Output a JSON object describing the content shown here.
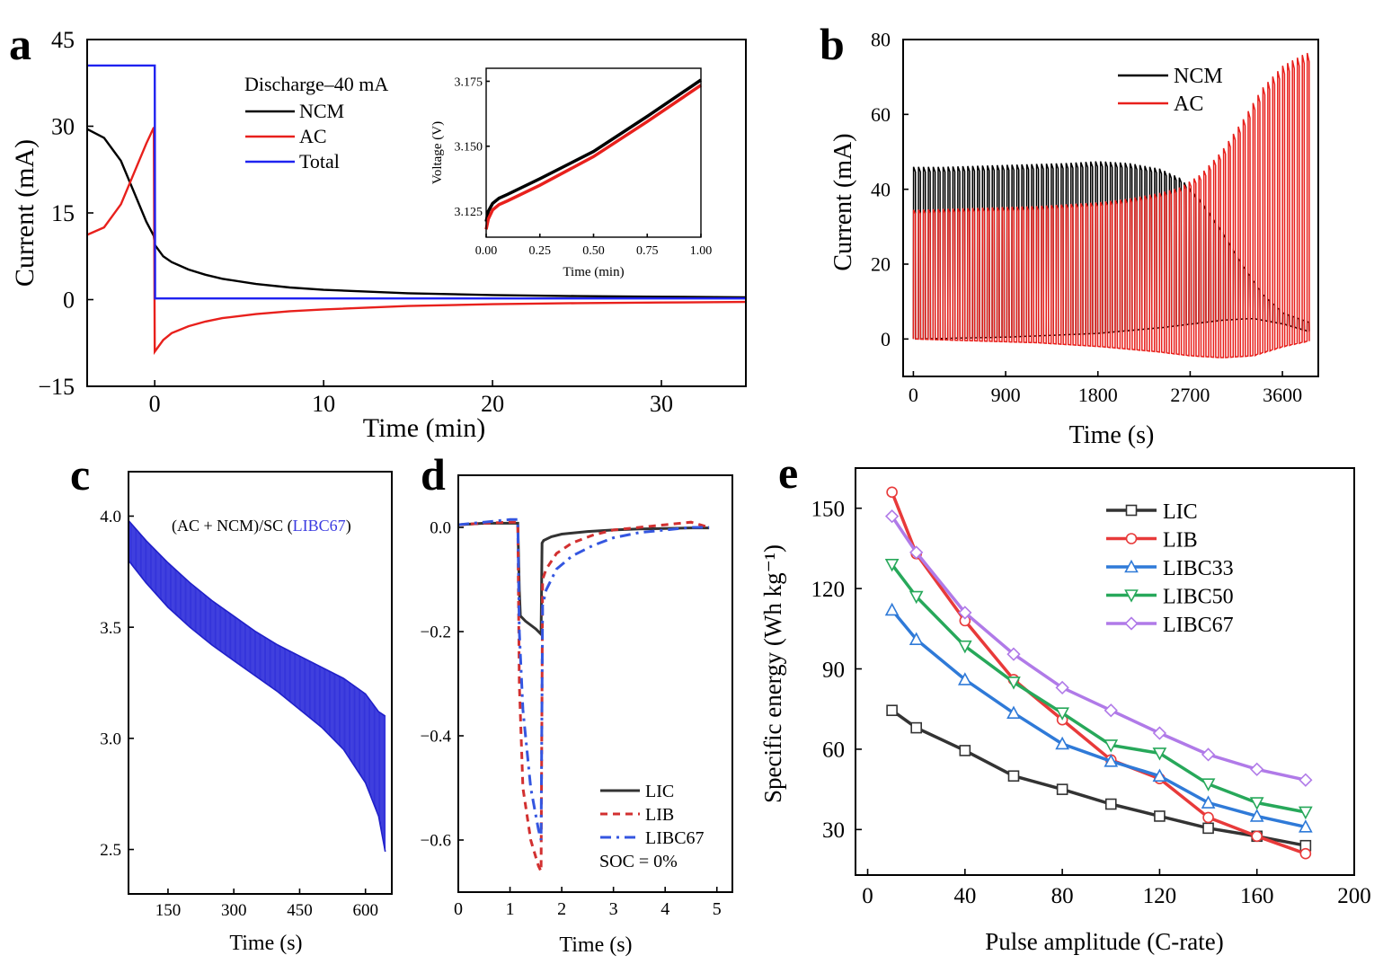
{
  "panel_letters": [
    "a",
    "b",
    "c",
    "d",
    "e"
  ],
  "colors": {
    "ncm": "#000000",
    "ac": "#e8201c",
    "total": "#1f22f0",
    "pulse_fill": "#3a3ae0",
    "lic": "#333333",
    "lib": "#e83a3a",
    "libc33": "#2f7ad8",
    "libc50": "#27a85a",
    "libc67": "#b07ae8",
    "d_lic": "#333333",
    "d_lib": "#d23030",
    "d_libc67": "#3456e0"
  },
  "chart_data": [
    {
      "id": "a",
      "type": "line",
      "xlabel": "Time (min)",
      "ylabel": "Current (mA)",
      "xlim": [
        -4,
        35
      ],
      "ylim": [
        -15,
        45
      ],
      "xticks": [
        0,
        10,
        20,
        30
      ],
      "yticks": [
        45,
        30,
        15,
        0,
        -15
      ],
      "ytick_labels": [
        "45",
        "30",
        "15",
        "0",
        "−15"
      ],
      "legend_title": "Discharge–40 mA",
      "series": [
        {
          "name": "NCM",
          "color_key": "ncm",
          "x": [
            -4,
            -3,
            -2,
            -1.5,
            -1,
            -0.5,
            -0.05,
            0,
            0.5,
            1,
            2,
            3,
            4,
            6,
            8,
            10,
            15,
            20,
            25,
            30,
            35
          ],
          "y": [
            29.5,
            28,
            24,
            20.5,
            17,
            13.5,
            11,
            9.5,
            7.5,
            6.5,
            5.2,
            4.3,
            3.6,
            2.7,
            2.1,
            1.7,
            1.1,
            0.8,
            0.6,
            0.5,
            0.4
          ]
        },
        {
          "name": "AC",
          "color_key": "ac",
          "x": [
            -4,
            -3,
            -2,
            -1.5,
            -1,
            -0.5,
            -0.05,
            0,
            0.5,
            1,
            2,
            3,
            4,
            6,
            8,
            10,
            15,
            20,
            25,
            30,
            35
          ],
          "y": [
            11.2,
            12.5,
            16.5,
            20,
            23.5,
            27,
            29.8,
            -9,
            -7,
            -5.8,
            -4.6,
            -3.8,
            -3.2,
            -2.5,
            -2,
            -1.7,
            -1.1,
            -0.8,
            -0.6,
            -0.5,
            -0.4
          ]
        },
        {
          "name": "Total",
          "color_key": "total",
          "x": [
            -4,
            -0.02,
            0,
            0.02,
            35
          ],
          "y": [
            40.5,
            40.5,
            40.5,
            0.2,
            0.2
          ]
        }
      ],
      "inset": {
        "xlabel": "Time (min)",
        "ylabel": "Voltage (V)",
        "xlim": [
          0,
          1
        ],
        "ylim": [
          3.115,
          3.18
        ],
        "xticks": [
          0,
          0.25,
          0.5,
          0.75,
          1.0
        ],
        "xtick_labels": [
          "0.00",
          "0.25",
          "0.50",
          "0.75",
          "1.00"
        ],
        "yticks": [
          3.125,
          3.15,
          3.175
        ],
        "ytick_labels": [
          "3.125",
          "3.150",
          "3.175"
        ],
        "series": [
          {
            "name": "NCM",
            "color_key": "ncm",
            "x": [
              0,
              0.01,
              0.03,
              0.06,
              0.1,
              0.25,
              0.5,
              0.75,
              1.0
            ],
            "y": [
              3.121,
              3.125,
              3.128,
              3.13,
              3.1315,
              3.1375,
              3.148,
              3.1615,
              3.1755
            ]
          },
          {
            "name": "AC",
            "color_key": "ac",
            "x": [
              0,
              0.01,
              0.03,
              0.06,
              0.1,
              0.25,
              0.5,
              0.75,
              1.0
            ],
            "y": [
              3.118,
              3.122,
              3.1255,
              3.1275,
              3.129,
              3.135,
              3.146,
              3.1595,
              3.1735
            ]
          }
        ]
      }
    },
    {
      "id": "b",
      "type": "line",
      "xlabel": "Time (s)",
      "ylabel": "Current (mA)",
      "xlim": [
        -100,
        3950
      ],
      "ylim": [
        -10,
        80
      ],
      "xticks": [
        0,
        900,
        1800,
        2700,
        3600
      ],
      "yticks": [
        0,
        20,
        40,
        60,
        80
      ],
      "series": [
        {
          "name": "NCM",
          "color_key": "ncm",
          "pattern": "pulse",
          "pulse_period_s": 48,
          "pulse_start_s": 0,
          "pulse_end_s": 3850,
          "peak_t": [
            0,
            300,
            900,
            1500,
            1800,
            2100,
            2400,
            2600,
            2800,
            3000,
            3200,
            3400,
            3600,
            3800,
            3850
          ],
          "peak_y": [
            46,
            46,
            46.5,
            47,
            47.5,
            47,
            45.5,
            43,
            37,
            29,
            20,
            12,
            7,
            5,
            4.5
          ],
          "base_t": [
            0,
            900,
            1800,
            2400,
            2700,
            3000,
            3300,
            3600,
            3850
          ],
          "base_y": [
            0,
            0.5,
            1.5,
            3,
            4,
            5,
            5.5,
            4,
            2
          ]
        },
        {
          "name": "AC",
          "color_key": "ac",
          "pattern": "pulse",
          "pulse_period_s": 48,
          "pulse_start_s": 0,
          "pulse_end_s": 3850,
          "peak_t": [
            0,
            600,
            1200,
            1800,
            2100,
            2400,
            2600,
            2800,
            3000,
            3200,
            3400,
            3600,
            3800,
            3850
          ],
          "peak_y": [
            34.5,
            35,
            35.5,
            36.5,
            37.5,
            39,
            40.5,
            44,
            50,
            58,
            67,
            73,
            76,
            76.5
          ],
          "base_t": [
            0,
            600,
            1200,
            1800,
            2400,
            2700,
            3000,
            3300,
            3600,
            3850
          ],
          "base_y": [
            0,
            -0.5,
            -1,
            -2,
            -3.5,
            -4.5,
            -5,
            -4.5,
            -2,
            -0.5
          ]
        }
      ]
    },
    {
      "id": "c",
      "type": "area",
      "title": "(AC + NCM)/SC (",
      "title_highlight": "LIBC67",
      "title_suffix": ")",
      "xlabel": "Time (s)",
      "ylabel": "",
      "xlim": [
        60,
        660
      ],
      "ylim": [
        2.3,
        4.2
      ],
      "xticks": [
        150,
        300,
        450,
        600
      ],
      "yticks": [
        2.5,
        3.0,
        3.5,
        4.0
      ],
      "ytick_labels": [
        "2.5",
        "3.0",
        "3.5",
        "4.0"
      ],
      "series": [
        {
          "name": "upper",
          "color_key": "pulse_fill",
          "x": [
            60,
            100,
            150,
            200,
            250,
            300,
            350,
            400,
            450,
            500,
            550,
            600,
            630,
            645
          ],
          "y": [
            3.98,
            3.89,
            3.79,
            3.7,
            3.62,
            3.55,
            3.48,
            3.42,
            3.37,
            3.32,
            3.27,
            3.2,
            3.12,
            3.1
          ]
        },
        {
          "name": "lower",
          "color_key": "pulse_fill",
          "x": [
            60,
            100,
            150,
            200,
            250,
            300,
            350,
            400,
            450,
            500,
            550,
            600,
            630,
            645
          ],
          "y": [
            3.8,
            3.7,
            3.59,
            3.5,
            3.42,
            3.35,
            3.28,
            3.21,
            3.13,
            3.05,
            2.95,
            2.8,
            2.65,
            2.49
          ]
        }
      ]
    },
    {
      "id": "d",
      "type": "line",
      "xlabel": "Time (s)",
      "ylabel": "",
      "xlim": [
        0,
        5.3
      ],
      "ylim": [
        -0.7,
        0.1
      ],
      "xticks": [
        0,
        1,
        2,
        3,
        4,
        5
      ],
      "yticks": [
        0.0,
        -0.2,
        -0.4,
        -0.6
      ],
      "ytick_labels": [
        "0.0",
        "−0.2",
        "−0.4",
        "−0.6"
      ],
      "annotation": "SOC = 0%",
      "series": [
        {
          "name": "LIC",
          "color_key": "d_lic",
          "dash": "",
          "x": [
            0,
            0.5,
            1.0,
            1.15,
            1.18,
            1.2,
            1.3,
            1.5,
            1.6,
            1.62,
            1.65,
            1.8,
            2.0,
            2.5,
            3.0,
            3.5,
            4.0,
            4.5,
            4.85
          ],
          "y": [
            0.005,
            0.008,
            0.008,
            0.008,
            -0.12,
            -0.17,
            -0.18,
            -0.195,
            -0.205,
            -0.03,
            -0.025,
            -0.018,
            -0.013,
            -0.008,
            -0.005,
            -0.003,
            -0.002,
            -0.001,
            -0.001
          ]
        },
        {
          "name": "LIB",
          "color_key": "d_lib",
          "dash": "8,6",
          "x": [
            0,
            0.5,
            1.0,
            1.15,
            1.18,
            1.25,
            1.4,
            1.55,
            1.6,
            1.63,
            1.7,
            1.9,
            2.2,
            2.6,
            3.0,
            3.5,
            4.0,
            4.5,
            4.85
          ],
          "y": [
            0.005,
            0.008,
            0.01,
            0.01,
            -0.3,
            -0.5,
            -0.6,
            -0.65,
            -0.66,
            -0.1,
            -0.08,
            -0.05,
            -0.03,
            -0.015,
            -0.005,
            0.0,
            0.005,
            0.01,
            0.0
          ]
        },
        {
          "name": "LIBC67",
          "color_key": "d_libc67",
          "dash": "12,6,3,6",
          "x": [
            0,
            0.5,
            1.0,
            1.15,
            1.18,
            1.25,
            1.4,
            1.55,
            1.6,
            1.63,
            1.7,
            1.9,
            2.2,
            2.6,
            3.0,
            3.5,
            4.0,
            4.5,
            4.85
          ],
          "y": [
            0.005,
            0.01,
            0.015,
            0.015,
            -0.2,
            -0.35,
            -0.5,
            -0.58,
            -0.6,
            -0.15,
            -0.12,
            -0.08,
            -0.055,
            -0.035,
            -0.02,
            -0.01,
            -0.005,
            0.0,
            0.0
          ]
        }
      ]
    },
    {
      "id": "e",
      "type": "line",
      "xlabel": "Pulse amplitude (C-rate)",
      "ylabel": "Specific energy (Wh kg⁻¹)",
      "xlim": [
        -5,
        200
      ],
      "ylim": [
        13,
        165
      ],
      "xticks": [
        0,
        40,
        80,
        120,
        160,
        200
      ],
      "yticks": [
        30,
        60,
        90,
        120,
        150
      ],
      "x": [
        10,
        20,
        40,
        60,
        80,
        100,
        120,
        140,
        160,
        180
      ],
      "series": [
        {
          "name": "LIC",
          "color_key": "lic",
          "marker": "square",
          "values": [
            74.5,
            68,
            59.5,
            50,
            45,
            39.5,
            35,
            30.5,
            27.5,
            24
          ]
        },
        {
          "name": "LIB",
          "color_key": "lib",
          "marker": "circle",
          "values": [
            156,
            133,
            108,
            86,
            71,
            56,
            49,
            34.5,
            27.5,
            21
          ]
        },
        {
          "name": "LIBC33",
          "color_key": "libc33",
          "marker": "triangle-up",
          "values": [
            112,
            101,
            86,
            73.5,
            62,
            55.5,
            50,
            40,
            35,
            31
          ]
        },
        {
          "name": "LIBC50",
          "color_key": "libc50",
          "marker": "triangle-down",
          "values": [
            129,
            117,
            98.5,
            85,
            73.5,
            61.5,
            58.5,
            47,
            40,
            36.5
          ]
        },
        {
          "name": "LIBC67",
          "color_key": "libc67",
          "marker": "diamond",
          "values": [
            147,
            133.5,
            111,
            95.5,
            83,
            74.5,
            66,
            58,
            52.5,
            48.5
          ]
        }
      ]
    }
  ]
}
